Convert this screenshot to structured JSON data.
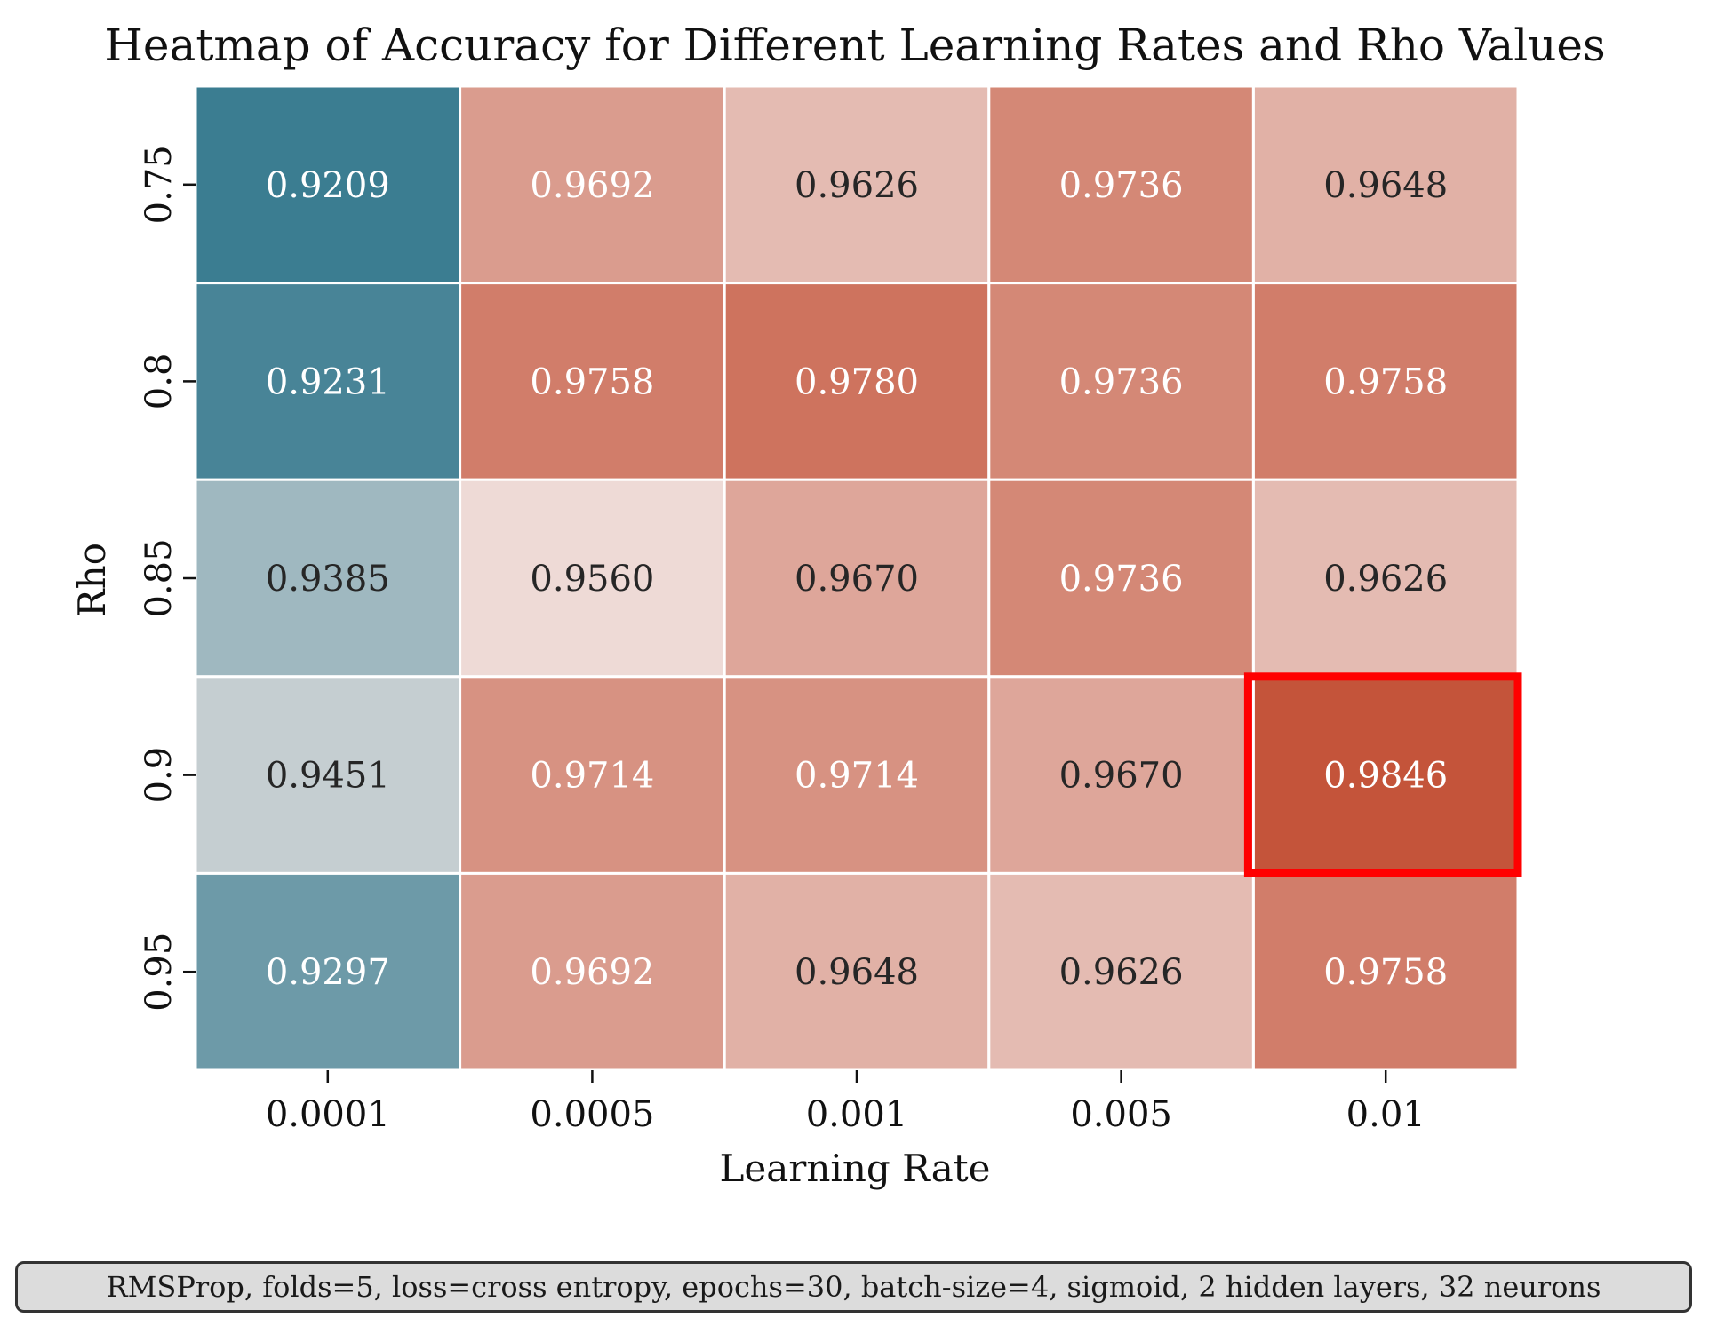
{
  "chart_data": {
    "type": "heatmap",
    "title": "Heatmap of Accuracy for Different Learning Rates and Rho Values",
    "xlabel": "Learning Rate",
    "ylabel": "Rho",
    "x_categories": [
      "0.0001",
      "0.0005",
      "0.001",
      "0.005",
      "0.01"
    ],
    "y_categories": [
      "0.75",
      "0.8",
      "0.85",
      "0.9",
      "0.95"
    ],
    "values": [
      [
        0.9209,
        0.9692,
        0.9626,
        0.9736,
        0.9648
      ],
      [
        0.9231,
        0.9758,
        0.978,
        0.9736,
        0.9758
      ],
      [
        0.9385,
        0.956,
        0.967,
        0.9736,
        0.9626
      ],
      [
        0.9451,
        0.9714,
        0.9714,
        0.967,
        0.9846
      ],
      [
        0.9297,
        0.9692,
        0.9648,
        0.9626,
        0.9758
      ]
    ],
    "value_format": "4 decimals",
    "highlight": {
      "row": 3,
      "col": 4,
      "color": "#ff0000"
    },
    "colormap": {
      "low": "#3b7d91",
      "center": "#f2e8e6",
      "high": "#c4543a",
      "center_value": 0.953
    },
    "colorbar": false,
    "grid_lines_color": "#ffffff"
  },
  "footnote": "RMSProp, folds=5, loss=cross entropy, epochs=30, batch-size=4, sigmoid, 2 hidden layers, 32 neurons"
}
